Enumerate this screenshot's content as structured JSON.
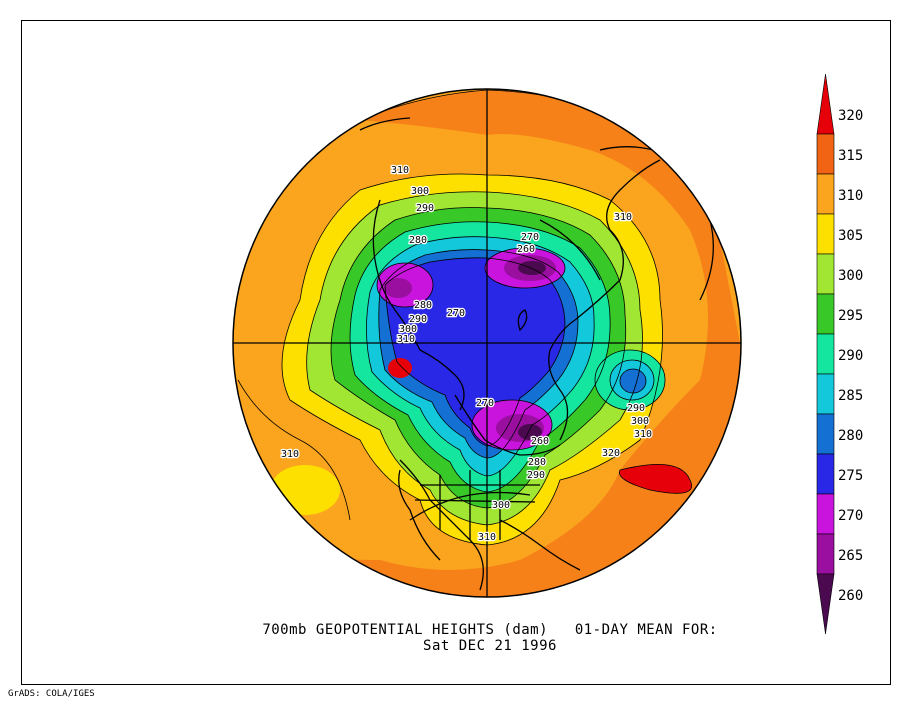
{
  "title_line1": "700mb GEOPOTENTIAL HEIGHTS (dam)   01-DAY MEAN FOR:",
  "title_line2": "Sat DEC 21 1996",
  "credit": "GrADS: COLA/IGES",
  "colorbar": {
    "levels": [
      {
        "value": "320",
        "color": "#e5000a"
      },
      {
        "value": "315",
        "color": "#f06414"
      },
      {
        "value": "310",
        "color": "#fba41e"
      },
      {
        "value": "305",
        "color": "#fde000"
      },
      {
        "value": "300",
        "color": "#a0e632"
      },
      {
        "value": "295",
        "color": "#38c828"
      },
      {
        "value": "290",
        "color": "#14e6a0"
      },
      {
        "value": "285",
        "color": "#14c8dc"
      },
      {
        "value": "280",
        "color": "#1470d2"
      },
      {
        "value": "275",
        "color": "#2828e6"
      },
      {
        "value": "270",
        "color": "#c814dc"
      },
      {
        "value": "265",
        "color": "#9a0fa0"
      },
      {
        "value": "260",
        "color": "#4b0a50"
      }
    ]
  },
  "contour_labels": [
    {
      "text": "310"
    },
    {
      "text": "300"
    },
    {
      "text": "290"
    },
    {
      "text": "280"
    },
    {
      "text": "280"
    },
    {
      "text": "290"
    },
    {
      "text": "300"
    },
    {
      "text": "310"
    },
    {
      "text": "270"
    },
    {
      "text": "270"
    },
    {
      "text": "260"
    },
    {
      "text": "310"
    },
    {
      "text": "270"
    },
    {
      "text": "260"
    },
    {
      "text": "280"
    },
    {
      "text": "290"
    },
    {
      "text": "300"
    },
    {
      "text": "290"
    },
    {
      "text": "300"
    },
    {
      "text": "310"
    },
    {
      "text": "320"
    },
    {
      "text": "310"
    },
    {
      "text": "310"
    }
  ]
}
